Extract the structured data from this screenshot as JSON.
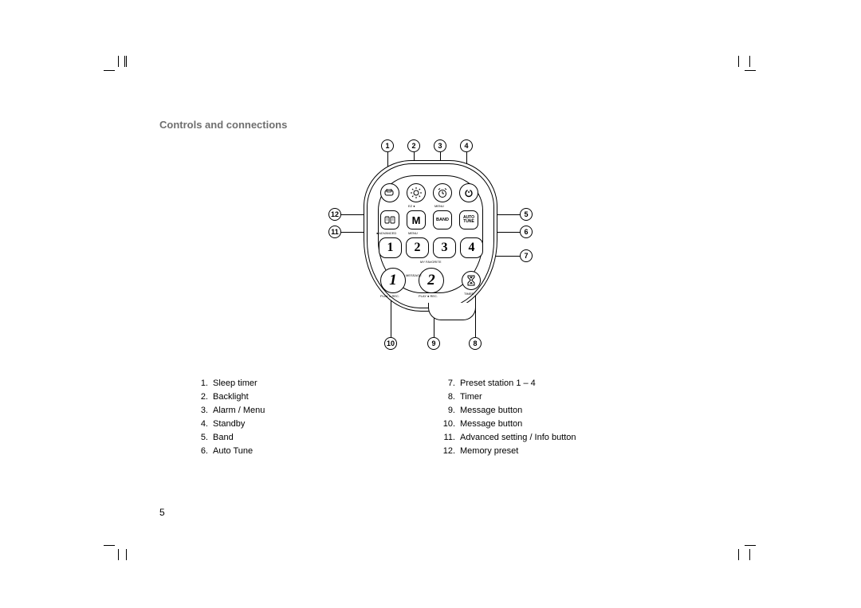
{
  "heading": "Controls and connections",
  "callouts": {
    "c1": "1",
    "c2": "2",
    "c3": "3",
    "c4": "4",
    "c5": "5",
    "c6": "6",
    "c7": "7",
    "c8": "8",
    "c9": "9",
    "c10": "10",
    "c11": "11",
    "c12": "12"
  },
  "buttons": {
    "band": "BAND",
    "auto_tune_1": "AUTO",
    "auto_tune_2": "TUNE",
    "m": "M",
    "p1": "1",
    "p2": "2",
    "p3": "3",
    "p4": "4",
    "msg1": "1",
    "msg2": "2"
  },
  "tiny_labels": {
    "advanced": "● ADVANCED",
    "menu": "MENU",
    "ez": "EZ ●",
    "favorites": "MY FAVORITE",
    "message": "MESSAGE",
    "playrec1": "PLAY ● REC.",
    "playrec2": "PLAY ● REC.",
    "timer": "TIMER"
  },
  "legend_left": [
    {
      "n": "1.",
      "t": "Sleep timer"
    },
    {
      "n": "2.",
      "t": "Backlight"
    },
    {
      "n": "3.",
      "t": "Alarm / Menu"
    },
    {
      "n": "4.",
      "t": "Standby"
    },
    {
      "n": "5.",
      "t": "Band"
    },
    {
      "n": "6.",
      "t": "Auto Tune"
    }
  ],
  "legend_right": [
    {
      "n": "7.",
      "t": "Preset station 1 – 4"
    },
    {
      "n": "8.",
      "t": "Timer"
    },
    {
      "n": "9.",
      "t": "Message button"
    },
    {
      "n": "10.",
      "t": "Message button"
    },
    {
      "n": "11.",
      "t": "Advanced setting / Info button"
    },
    {
      "n": "12.",
      "t": "Memory preset"
    }
  ],
  "page_number": "5"
}
